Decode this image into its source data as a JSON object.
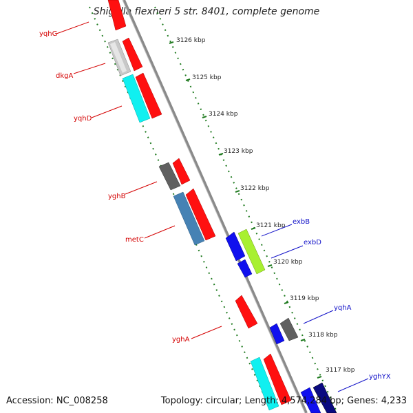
{
  "title": "Shigella flexneri 5 str. 8401, complete genome",
  "footer": {
    "accession": "Accession: NC_008258",
    "summary": "Topology: circular; Length: 4,574,284 bp; Genes: 4,233"
  },
  "colors": {
    "backbone": "#8a8a8a",
    "ticks": "#1f7a1f",
    "minus_label": "#d40000",
    "plus_label": "#1010c8"
  },
  "kbp_ticks": [
    "3126 kbp",
    "3125 kbp",
    "3124 kbp",
    "3123 kbp",
    "3122 kbp",
    "3121 kbp",
    "3120 kbp",
    "3119 kbp",
    "3118 kbp",
    "3117 kbp"
  ],
  "gene_labels": [
    {
      "text": "yqhG",
      "strand": "minus"
    },
    {
      "text": "dkgA",
      "strand": "minus"
    },
    {
      "text": "yqhD",
      "strand": "minus"
    },
    {
      "text": "yghB",
      "strand": "minus"
    },
    {
      "text": "metC",
      "strand": "minus"
    },
    {
      "text": "yghA",
      "strand": "minus"
    },
    {
      "text": "exbB",
      "strand": "plus"
    },
    {
      "text": "exbD",
      "strand": "plus"
    },
    {
      "text": "yqhA",
      "strand": "plus"
    },
    {
      "text": "yghYX",
      "strand": "plus"
    }
  ],
  "gene_colors": {
    "red": "#ff1010",
    "grey": "#c8c8c8",
    "cyan": "#10f0f0",
    "darkgrey": "#606060",
    "steelblue": "#4682b4",
    "blue": "#1010ee",
    "lime": "#a8f030",
    "navy": "#0a0a80"
  }
}
